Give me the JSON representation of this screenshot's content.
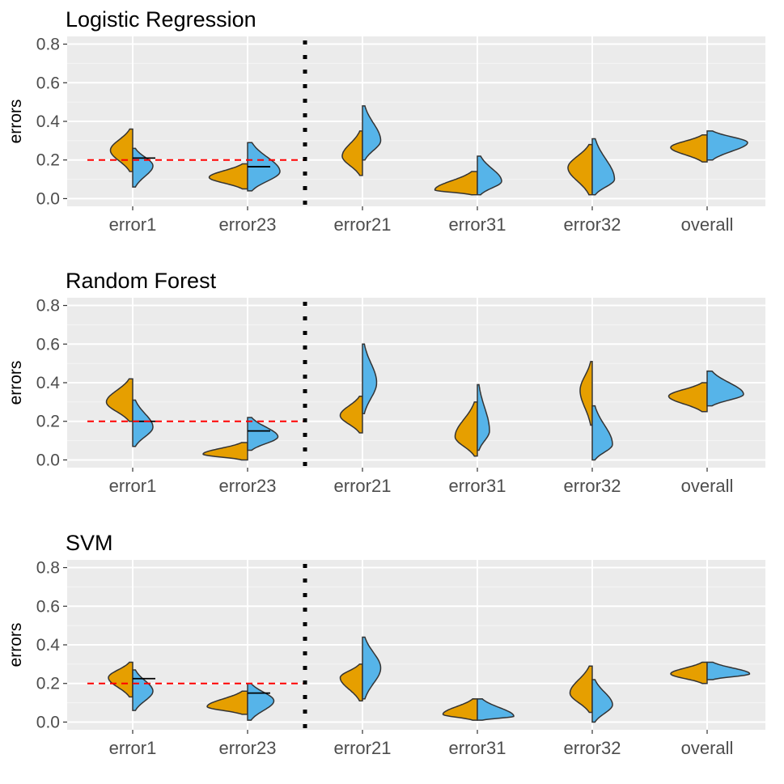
{
  "chart_data": [
    {
      "type": "split-violin",
      "title": "Logistic Regression",
      "ylabel": "errors",
      "ylim": [
        -0.04,
        0.84
      ],
      "yticks": [
        "0.0",
        "0.2",
        "0.4",
        "0.6",
        "0.8"
      ],
      "ytick_values": [
        0.0,
        0.2,
        0.4,
        0.6,
        0.8
      ],
      "categories": [
        "error1",
        "error23",
        "error21",
        "error31",
        "error32",
        "overall"
      ],
      "reference_line": 0.2,
      "separator_after": "error23",
      "colors": {
        "left": "#E69F00",
        "right": "#56B4E9",
        "reference": "#FF0000"
      },
      "violins": [
        {
          "category": "error1",
          "left": {
            "range": [
              0.14,
              0.36
            ],
            "peak": 0.25,
            "width": 0.55
          },
          "right": {
            "range": [
              0.06,
              0.26
            ],
            "peak": 0.17,
            "width": 0.5
          },
          "marker": 0.21
        },
        {
          "category": "error23",
          "left": {
            "range": [
              0.05,
              0.18
            ],
            "peak": 0.11,
            "width": 0.95
          },
          "right": {
            "range": [
              0.04,
              0.29
            ],
            "peak": 0.14,
            "width": 0.8
          },
          "marker": 0.165
        },
        {
          "category": "error21",
          "left": {
            "range": [
              0.12,
              0.35
            ],
            "peak": 0.22,
            "width": 0.5
          },
          "right": {
            "range": [
              0.2,
              0.48
            ],
            "peak": 0.3,
            "width": 0.45
          }
        },
        {
          "category": "error31",
          "left": {
            "range": [
              0.02,
              0.14
            ],
            "peak": 0.045,
            "width": 1.05
          },
          "right": {
            "range": [
              0.02,
              0.22
            ],
            "peak": 0.09,
            "width": 0.6
          }
        },
        {
          "category": "error32",
          "left": {
            "range": [
              0.02,
              0.28
            ],
            "peak": 0.16,
            "width": 0.6
          },
          "right": {
            "range": [
              0.02,
              0.31
            ],
            "peak": 0.1,
            "width": 0.55
          }
        },
        {
          "category": "overall",
          "left": {
            "range": [
              0.19,
              0.33
            ],
            "peak": 0.265,
            "width": 0.9
          },
          "right": {
            "range": [
              0.2,
              0.35
            ],
            "peak": 0.29,
            "width": 1.0
          }
        }
      ]
    },
    {
      "type": "split-violin",
      "title": "Random Forest",
      "ylabel": "errors",
      "ylim": [
        -0.04,
        0.84
      ],
      "yticks": [
        "0.0",
        "0.2",
        "0.4",
        "0.6",
        "0.8"
      ],
      "ytick_values": [
        0.0,
        0.2,
        0.4,
        0.6,
        0.8
      ],
      "categories": [
        "error1",
        "error23",
        "error21",
        "error31",
        "error32",
        "overall"
      ],
      "reference_line": 0.2,
      "separator_after": "error23",
      "colors": {
        "left": "#E69F00",
        "right": "#56B4E9",
        "reference": "#FF0000"
      },
      "violins": [
        {
          "category": "error1",
          "left": {
            "range": [
              0.2,
              0.42
            ],
            "peak": 0.3,
            "width": 0.65
          },
          "right": {
            "range": [
              0.07,
              0.31
            ],
            "peak": 0.17,
            "width": 0.5
          },
          "marker": 0.2
        },
        {
          "category": "error23",
          "left": {
            "range": [
              0.0,
              0.09
            ],
            "peak": 0.03,
            "width": 1.1
          },
          "right": {
            "range": [
              0.05,
              0.22
            ],
            "peak": 0.12,
            "width": 0.75
          },
          "marker": 0.15
        },
        {
          "category": "error21",
          "left": {
            "range": [
              0.14,
              0.33
            ],
            "peak": 0.23,
            "width": 0.55
          },
          "right": {
            "range": [
              0.24,
              0.6
            ],
            "peak": 0.4,
            "width": 0.35
          }
        },
        {
          "category": "error31",
          "left": {
            "range": [
              0.02,
              0.3
            ],
            "peak": 0.12,
            "width": 0.55
          },
          "right": {
            "range": [
              0.05,
              0.39
            ],
            "peak": 0.15,
            "width": 0.3
          }
        },
        {
          "category": "error32",
          "left": {
            "range": [
              0.18,
              0.51
            ],
            "peak": 0.36,
            "width": 0.3
          },
          "right": {
            "range": [
              0.0,
              0.28
            ],
            "peak": 0.08,
            "width": 0.5
          }
        },
        {
          "category": "overall",
          "left": {
            "range": [
              0.25,
              0.4
            ],
            "peak": 0.33,
            "width": 0.95
          },
          "right": {
            "range": [
              0.28,
              0.46
            ],
            "peak": 0.34,
            "width": 0.9
          }
        }
      ]
    },
    {
      "type": "split-violin",
      "title": "SVM",
      "ylabel": "errors",
      "ylim": [
        -0.04,
        0.84
      ],
      "yticks": [
        "0.0",
        "0.2",
        "0.4",
        "0.6",
        "0.8"
      ],
      "ytick_values": [
        0.0,
        0.2,
        0.4,
        0.6,
        0.8
      ],
      "categories": [
        "error1",
        "error23",
        "error21",
        "error31",
        "error32",
        "overall"
      ],
      "reference_line": 0.2,
      "separator_after": "error23",
      "colors": {
        "left": "#E69F00",
        "right": "#56B4E9",
        "reference": "#FF0000"
      },
      "violins": [
        {
          "category": "error1",
          "left": {
            "range": [
              0.13,
              0.31
            ],
            "peak": 0.23,
            "width": 0.6
          },
          "right": {
            "range": [
              0.06,
              0.27
            ],
            "peak": 0.16,
            "width": 0.5
          },
          "marker": 0.225
        },
        {
          "category": "error23",
          "left": {
            "range": [
              0.04,
              0.16
            ],
            "peak": 0.08,
            "width": 1.0
          },
          "right": {
            "range": [
              0.01,
              0.2
            ],
            "peak": 0.11,
            "width": 0.65
          },
          "marker": 0.15
        },
        {
          "category": "error21",
          "left": {
            "range": [
              0.11,
              0.3
            ],
            "peak": 0.23,
            "width": 0.55
          },
          "right": {
            "range": [
              0.12,
              0.44
            ],
            "peak": 0.28,
            "width": 0.45
          }
        },
        {
          "category": "error31",
          "left": {
            "range": [
              0.01,
              0.12
            ],
            "peak": 0.04,
            "width": 0.85
          },
          "right": {
            "range": [
              0.01,
              0.12
            ],
            "peak": 0.03,
            "width": 0.9
          }
        },
        {
          "category": "error32",
          "left": {
            "range": [
              0.05,
              0.29
            ],
            "peak": 0.15,
            "width": 0.55
          },
          "right": {
            "range": [
              0.0,
              0.22
            ],
            "peak": 0.09,
            "width": 0.5
          }
        },
        {
          "category": "overall",
          "left": {
            "range": [
              0.2,
              0.31
            ],
            "peak": 0.25,
            "width": 0.9
          },
          "right": {
            "range": [
              0.22,
              0.31
            ],
            "peak": 0.25,
            "width": 1.05
          }
        }
      ]
    }
  ]
}
